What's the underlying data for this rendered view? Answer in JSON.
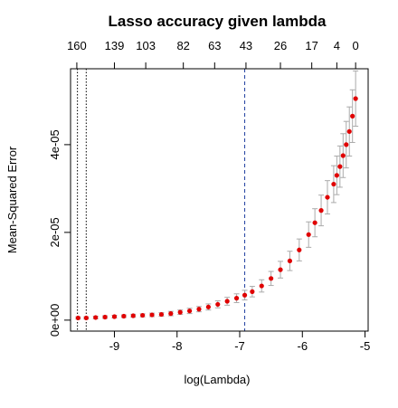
{
  "chart_data": {
    "type": "scatter",
    "title": "Lasso accuracy given lambda",
    "xlabel": "log(Lambda)",
    "ylabel": "Mean-Squared Error",
    "xlim": [
      -9.7,
      -4.95
    ],
    "ylim": [
      -2.5e-06,
      5.73e-05
    ],
    "x_ticks": [
      -9,
      -8,
      -7,
      -6,
      -5
    ],
    "x_tick_labels": [
      "-9",
      "-8",
      "-7",
      "-6",
      "-5"
    ],
    "y_ticks": [
      0,
      2e-05,
      4e-05
    ],
    "y_tick_labels": [
      "0e+00",
      "2e-05",
      "4e-05"
    ],
    "top_axis": {
      "positions": [
        -9.6,
        -9.0,
        -8.5,
        -7.9,
        -7.4,
        -6.9,
        -6.35,
        -5.85,
        -5.45,
        -5.15
      ],
      "labels": [
        "160",
        "139",
        "103",
        "82",
        "63",
        "43",
        "26",
        "17",
        "4",
        "0"
      ]
    },
    "reference_lines": [
      {
        "x": -9.59,
        "style": "dotted",
        "color": "#000000"
      },
      {
        "x": -9.45,
        "style": "dotted",
        "color": "#000000"
      },
      {
        "x": -6.92,
        "style": "dashed",
        "color": "#1f3fa0"
      }
    ],
    "grid": false,
    "legend": "none",
    "colors": {
      "points": "#e00000",
      "error_bars": "#aaaaaa",
      "axis": "#000000"
    },
    "series": [
      {
        "x": [
          -9.58,
          -9.45,
          -9.3,
          -9.15,
          -9.0,
          -8.85,
          -8.7,
          -8.55,
          -8.4,
          -8.25,
          -8.1,
          -7.95,
          -7.8,
          -7.65,
          -7.5,
          -7.35,
          -7.2,
          -7.05,
          -6.92,
          -6.8,
          -6.65,
          -6.5,
          -6.35,
          -6.2,
          -6.05,
          -5.9,
          -5.8,
          -5.7,
          -5.6,
          -5.5,
          -5.45,
          -5.4,
          -5.35,
          -5.3,
          -5.25,
          -5.2,
          -5.15
        ],
        "y": [
          5e-07,
          5e-07,
          6e-07,
          7e-07,
          8e-07,
          9e-07,
          1e-06,
          1.1e-06,
          1.2e-06,
          1.3e-06,
          1.5e-06,
          1.8e-06,
          2.1e-06,
          2.5e-06,
          3e-06,
          3.6e-06,
          4.3e-06,
          5e-06,
          5.7e-06,
          6.5e-06,
          7.8e-06,
          9.5e-06,
          1.15e-05,
          1.35e-05,
          1.6e-05,
          1.95e-05,
          2.22e-05,
          2.5e-05,
          2.8e-05,
          3.1e-05,
          3.3e-05,
          3.5e-05,
          3.75e-05,
          4e-05,
          4.3e-05,
          4.65e-05,
          5.05e-05
        ],
        "err": [
          2.5e-07,
          2.5e-07,
          3e-07,
          3e-07,
          3e-07,
          3e-07,
          3.5e-07,
          3.5e-07,
          4e-07,
          4e-07,
          5e-07,
          5e-07,
          6e-07,
          6e-07,
          7e-07,
          8e-07,
          9e-07,
          1e-06,
          1.1e-06,
          1.2e-06,
          1.4e-06,
          1.6e-06,
          1.9e-06,
          2.2e-06,
          2.5e-06,
          2.9e-06,
          3.2e-06,
          3.5e-06,
          3.8e-06,
          4.2e-06,
          4.4e-06,
          4.7e-06,
          5e-06,
          5.3e-06,
          5.6e-06,
          6e-06,
          6.3e-06
        ]
      }
    ]
  }
}
